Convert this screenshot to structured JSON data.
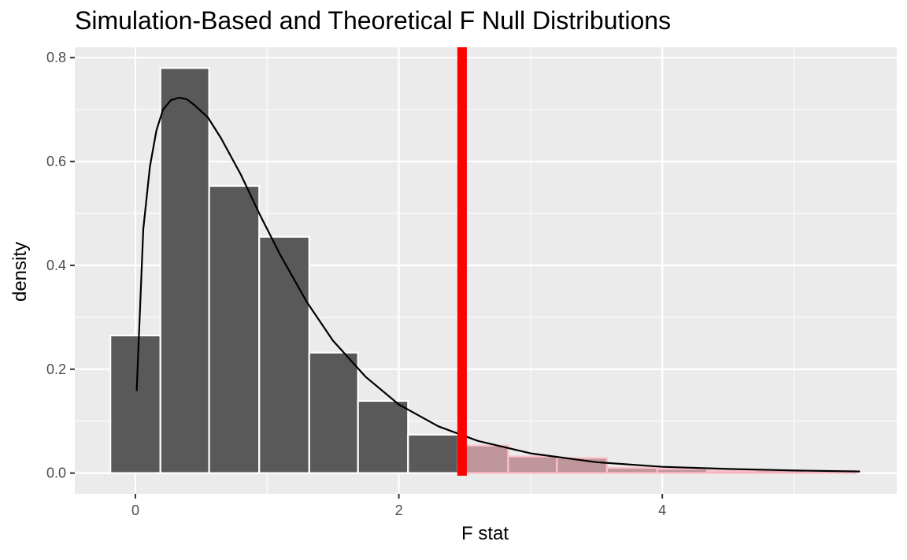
{
  "chart_data": {
    "type": "bar",
    "title": "Simulation-Based and Theoretical F Null Distributions",
    "xlabel": "F stat",
    "ylabel": "density",
    "xlim": [
      -0.46,
      5.78
    ],
    "ylim": [
      -0.04,
      0.82
    ],
    "x_ticks": [
      0,
      2,
      4
    ],
    "x_tick_labels": [
      "0",
      "2",
      "4"
    ],
    "y_ticks": [
      0.0,
      0.2,
      0.4,
      0.6,
      0.8
    ],
    "y_tick_labels": [
      "0.0",
      "0.2",
      "0.4",
      "0.6",
      "0.8"
    ],
    "grid": true,
    "bins": [
      {
        "x0": -0.19,
        "x1": 0.19,
        "density": 0.265,
        "shaded": false
      },
      {
        "x0": 0.19,
        "x1": 0.56,
        "density": 0.78,
        "shaded": false
      },
      {
        "x0": 0.56,
        "x1": 0.94,
        "density": 0.553,
        "shaded": false
      },
      {
        "x0": 0.94,
        "x1": 1.32,
        "density": 0.455,
        "shaded": false
      },
      {
        "x0": 1.32,
        "x1": 1.69,
        "density": 0.232,
        "shaded": false
      },
      {
        "x0": 1.69,
        "x1": 2.07,
        "density": 0.139,
        "shaded": false
      },
      {
        "x0": 2.07,
        "x1": 2.45,
        "density": 0.074,
        "shaded": false
      },
      {
        "x0": 2.45,
        "x1": 2.83,
        "density": 0.053,
        "shaded": true
      },
      {
        "x0": 2.83,
        "x1": 3.2,
        "density": 0.032,
        "shaded": true
      },
      {
        "x0": 3.2,
        "x1": 3.58,
        "density": 0.029,
        "shaded": true
      },
      {
        "x0": 3.58,
        "x1": 3.96,
        "density": 0.01,
        "shaded": true
      },
      {
        "x0": 3.96,
        "x1": 4.34,
        "density": 0.008,
        "shaded": true
      },
      {
        "x0": 4.34,
        "x1": 4.71,
        "density": 0.004,
        "shaded": true
      },
      {
        "x0": 4.71,
        "x1": 5.09,
        "density": 0.005,
        "shaded": true
      },
      {
        "x0": 5.09,
        "x1": 5.47,
        "density": 0.004,
        "shaded": true
      }
    ],
    "theoretical_curve": {
      "x": [
        0.01,
        0.06,
        0.11,
        0.16,
        0.21,
        0.27,
        0.33,
        0.39,
        0.45,
        0.55,
        0.65,
        0.8,
        0.95,
        1.1,
        1.3,
        1.5,
        1.75,
        2.0,
        2.3,
        2.6,
        3.0,
        3.5,
        4.0,
        4.5,
        5.0,
        5.5
      ],
      "y": [
        0.158,
        0.47,
        0.59,
        0.66,
        0.7,
        0.718,
        0.723,
        0.72,
        0.708,
        0.685,
        0.645,
        0.575,
        0.495,
        0.42,
        0.33,
        0.255,
        0.185,
        0.132,
        0.09,
        0.062,
        0.038,
        0.021,
        0.012,
        0.008,
        0.005,
        0.003
      ]
    },
    "observed_stat": 2.48,
    "colors": {
      "panel_bg": "#ebebeb",
      "grid": "#ffffff",
      "bar_fill": "#595959",
      "bar_outline": "#ffffff",
      "shaded_fill": "#bf969b",
      "shaded_outline": "#ffc0cb",
      "curve": "#000000",
      "observed_line": "#ff0000"
    }
  }
}
